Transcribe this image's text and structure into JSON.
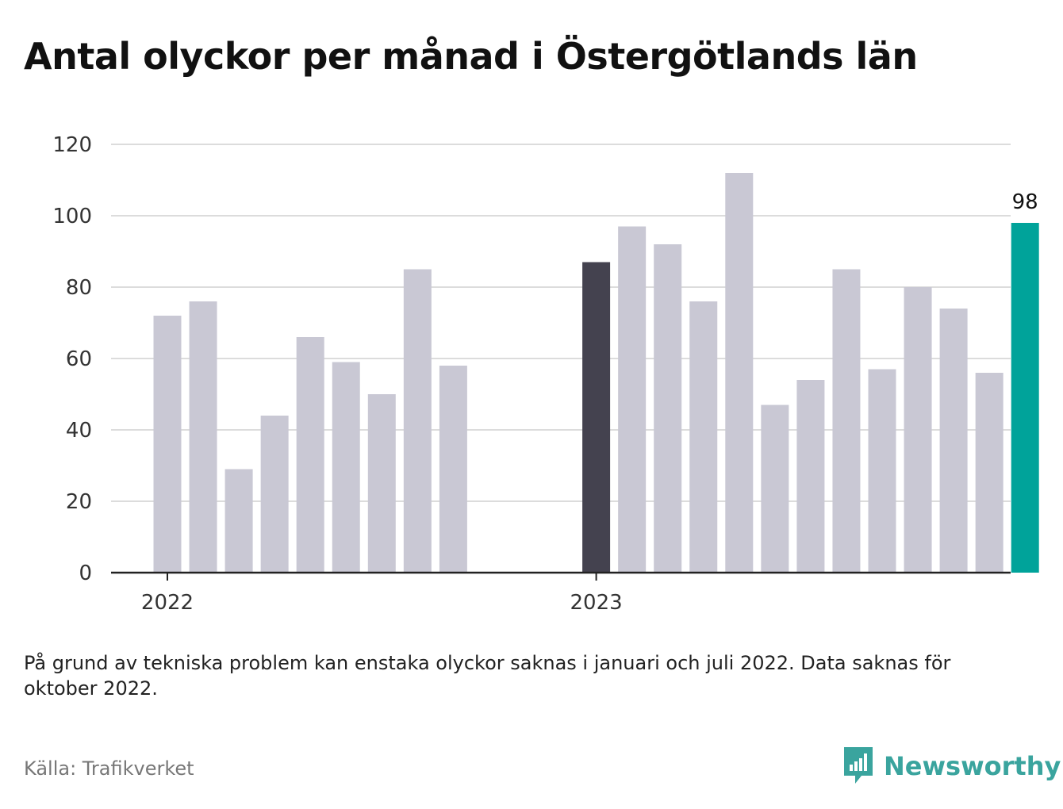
{
  "title": "Antal olyckor per månad i Östergötlands län",
  "note": "På grund av tekniska problem kan enstaka olyckor saknas i januari och juli 2022. Data saknas för oktober 2022.",
  "source": "Källa: Trafikverket",
  "brand": {
    "name": "Newsworthy",
    "icon": "newsworthy-logo-icon",
    "color": "#3aa49e"
  },
  "chart_data": {
    "type": "bar",
    "title": "Antal olyckor per månad i Östergötlands län",
    "xlabel": "",
    "ylabel": "",
    "ylim": [
      0,
      120
    ],
    "yticks": [
      "0",
      "20",
      "40",
      "60",
      "80",
      "100",
      "120"
    ],
    "xticks": [
      {
        "label": "2022",
        "month": "2022-01"
      },
      {
        "label": "2023",
        "month": "2023-01"
      }
    ],
    "grid": true,
    "months": [
      "2022-01",
      "2022-02",
      "2022-03",
      "2022-04",
      "2022-05",
      "2022-06",
      "2022-07",
      "2022-08",
      "2022-09",
      "2022-10",
      "2022-11",
      "2022-12",
      "2023-01",
      "2023-02",
      "2023-03",
      "2023-04",
      "2023-05",
      "2023-06",
      "2023-07",
      "2023-08",
      "2023-09",
      "2023-10",
      "2023-11",
      "2023-12",
      "2024-01"
    ],
    "values": [
      72,
      76,
      29,
      44,
      66,
      59,
      50,
      85,
      58,
      null,
      null,
      null,
      87,
      97,
      92,
      76,
      112,
      47,
      54,
      85,
      57,
      80,
      74,
      56,
      98
    ],
    "colors": {
      "default": "#c9c8d4",
      "previous_year": "#44424f",
      "latest": "#00a39a"
    },
    "highlight_dark": "2023-01",
    "highlight_latest": "2024-01",
    "value_labels": [
      {
        "month": "2024-01",
        "text": "98"
      }
    ]
  }
}
